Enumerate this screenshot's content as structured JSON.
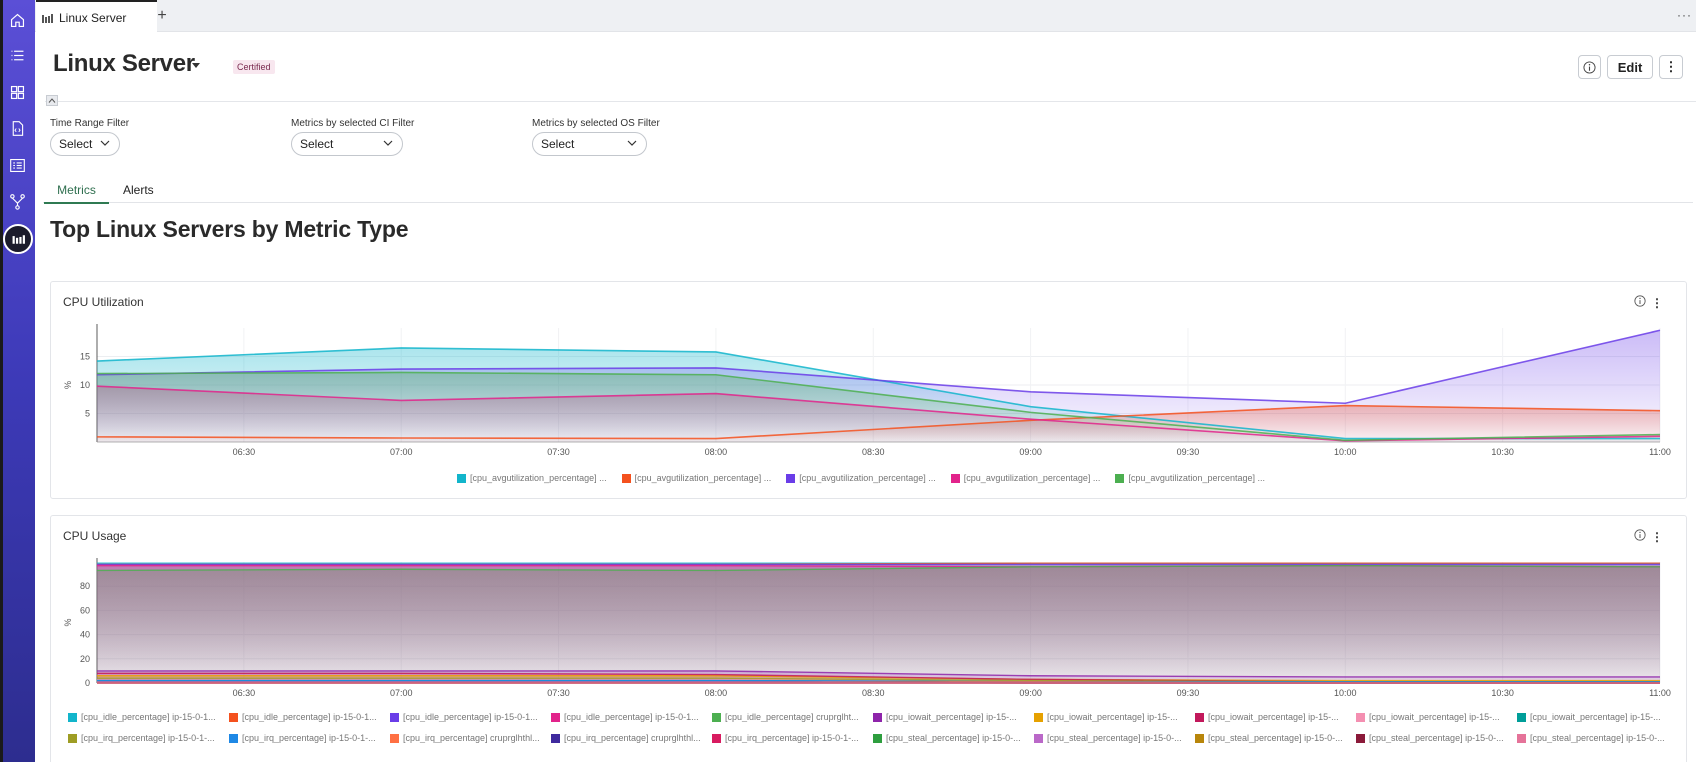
{
  "tab": {
    "label": "Linux Server",
    "add": "+",
    "more": "···"
  },
  "header": {
    "title": "Linux Server",
    "badge": "Certified",
    "edit_label": "Edit",
    "kebab": "⋮"
  },
  "filters": [
    {
      "label": "Time Range Filter",
      "value": "Select"
    },
    {
      "label": "Metrics by selected CI Filter",
      "value": "Select"
    },
    {
      "label": "Metrics by selected OS Filter",
      "value": "Select"
    }
  ],
  "page_tabs": {
    "metrics": "Metrics",
    "alerts": "Alerts"
  },
  "section_title": "Top Linux Servers by Metric Type",
  "panels": {
    "cpu_util": {
      "title": "CPU Utilization",
      "kebab": "⋮"
    },
    "cpu_usage": {
      "title": "CPU Usage",
      "kebab": "⋮"
    }
  },
  "chart_data": [
    {
      "type": "area",
      "title": "CPU Utilization",
      "ylabel": "%",
      "x": [
        "06:02",
        "07:00",
        "08:00",
        "09:00",
        "10:00",
        "11:00"
      ],
      "xticks": [
        "06:30",
        "07:00",
        "07:30",
        "08:00",
        "08:30",
        "09:00",
        "09:30",
        "10:00",
        "10:30",
        "11:00"
      ],
      "yticks": [
        5,
        10,
        15
      ],
      "ylim": [
        0,
        20
      ],
      "series": [
        {
          "name": "[cpu_avgutilization_percentage] ...",
          "color": "#12b5cb",
          "values": [
            14.2,
            16.5,
            15.8,
            6.2,
            0.6,
            0.6
          ]
        },
        {
          "name": "[cpu_avgutilization_percentage] ...",
          "color": "#f4511e",
          "values": [
            0.9,
            0.7,
            0.6,
            3.8,
            6.4,
            5.5
          ]
        },
        {
          "name": "[cpu_avgutilization_percentage] ...",
          "color": "#6a3de8",
          "values": [
            11.8,
            12.8,
            13.0,
            8.8,
            6.8,
            19.6
          ]
        },
        {
          "name": "[cpu_avgutilization_percentage] ...",
          "color": "#e2238b",
          "values": [
            9.8,
            7.3,
            8.5,
            4.0,
            0.2,
            1.0
          ]
        },
        {
          "name": "[cpu_avgutilization_percentage] ...",
          "color": "#4caf50",
          "values": [
            12.0,
            12.2,
            11.8,
            5.2,
            0.3,
            1.3
          ]
        }
      ]
    },
    {
      "type": "area",
      "title": "CPU Usage",
      "ylabel": "%",
      "x": [
        "06:02",
        "07:00",
        "08:00",
        "09:00",
        "10:00",
        "11:00"
      ],
      "xticks": [
        "06:30",
        "07:00",
        "07:30",
        "08:00",
        "08:30",
        "09:00",
        "09:30",
        "10:00",
        "10:30",
        "11:00"
      ],
      "yticks": [
        0,
        20,
        40,
        60,
        80
      ],
      "ylim": [
        0,
        100
      ],
      "series": [
        {
          "name": "[cpu_idle_percentage] ip-15-0-1...",
          "color": "#12b5cb",
          "values": [
            99,
            99,
            99,
            99,
            99,
            99
          ]
        },
        {
          "name": "[cpu_idle_percentage] ip-15-0-1...",
          "color": "#f4511e",
          "values": [
            98,
            98,
            98,
            99,
            99,
            99
          ]
        },
        {
          "name": "[cpu_idle_percentage] ip-15-0-1...",
          "color": "#6a3de8",
          "values": [
            98,
            98,
            98,
            98,
            98,
            98
          ]
        },
        {
          "name": "[cpu_idle_percentage] ip-15-0-1...",
          "color": "#e2238b",
          "values": [
            97,
            97,
            97,
            96,
            97,
            96
          ]
        },
        {
          "name": "[cpu_idle_percentage] cruprglht...",
          "color": "#4caf50",
          "values": [
            93,
            94,
            93,
            96,
            97,
            96
          ]
        },
        {
          "name": "[cpu_iowait_percentage] ip-15-...",
          "color": "#8e24aa",
          "values": [
            10,
            10,
            10,
            6,
            5,
            5
          ]
        },
        {
          "name": "[cpu_iowait_percentage] ip-15-...",
          "color": "#e6a100",
          "values": [
            6,
            6,
            6,
            3,
            2,
            2
          ]
        },
        {
          "name": "[cpu_iowait_percentage] ip-15-...",
          "color": "#c2185b",
          "values": [
            8,
            8,
            7,
            3,
            1,
            1
          ]
        },
        {
          "name": "[cpu_iowait_percentage] ip-15-...",
          "color": "#f48fb1",
          "values": [
            3,
            3,
            3,
            1,
            1,
            1
          ]
        },
        {
          "name": "[cpu_iowait_percentage] ip-15-...",
          "color": "#009e99",
          "values": [
            2,
            2,
            2,
            1,
            1,
            1
          ]
        },
        {
          "name": "[cpu_irq_percentage] ip-15-0-1-...",
          "color": "#9e9d24",
          "values": [
            4,
            4,
            4,
            2,
            1,
            1
          ]
        },
        {
          "name": "[cpu_irq_percentage] ip-15-0-1-...",
          "color": "#1e88e5",
          "values": [
            2,
            2,
            2,
            1,
            1,
            1
          ]
        },
        {
          "name": "[cpu_irq_percentage] cruprglhthl...",
          "color": "#ff7043",
          "values": [
            1,
            1,
            1,
            1,
            0,
            0
          ]
        },
        {
          "name": "[cpu_irq_percentage] cruprglhthl...",
          "color": "#3f2a9e",
          "values": [
            1,
            1,
            1,
            0,
            0,
            0
          ]
        },
        {
          "name": "[cpu_irq_percentage] ip-15-0-1-...",
          "color": "#d81b60",
          "values": [
            1,
            1,
            1,
            0,
            0,
            0
          ]
        },
        {
          "name": "[cpu_steal_percentage] ip-15-0-...",
          "color": "#2e9e3f",
          "values": [
            1,
            1,
            1,
            0,
            0,
            0
          ]
        },
        {
          "name": "[cpu_steal_percentage] ip-15-0-...",
          "color": "#ba68c8",
          "values": [
            1,
            1,
            1,
            0,
            0,
            0
          ]
        },
        {
          "name": "[cpu_steal_percentage] ip-15-0-...",
          "color": "#b8860b",
          "values": [
            0,
            0,
            0,
            0,
            0,
            0
          ]
        },
        {
          "name": "[cpu_steal_percentage] ip-15-0-...",
          "color": "#8b1a3a",
          "values": [
            0,
            0,
            0,
            0,
            0,
            0
          ]
        },
        {
          "name": "[cpu_steal_percentage] ip-15-0-...",
          "color": "#e57399",
          "values": [
            0,
            0,
            0,
            0,
            0,
            0
          ]
        }
      ]
    }
  ]
}
